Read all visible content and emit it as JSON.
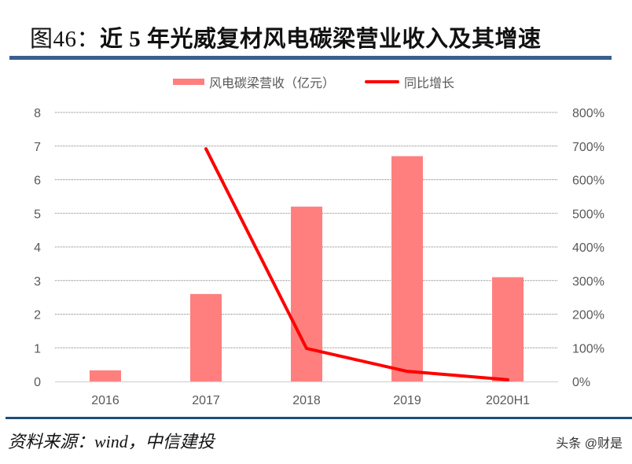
{
  "header": {
    "figure_label": "图46：",
    "title_text": "近 5 年光威复材风电碳梁营业收入及其增速"
  },
  "legend": {
    "bar_label": "风电碳梁营收（亿元）",
    "line_label": "同比增长"
  },
  "footer": {
    "source": "资料来源：wind，中信建投",
    "watermark": "头条 @财是"
  },
  "colors": {
    "bar": "#ff7f7f",
    "line": "#ff0000",
    "rule_top": "#3a5f8f",
    "rule_bottom": "#1f4e79",
    "axis_text": "#595959"
  },
  "chart_data": {
    "type": "bar",
    "title": "近5年光威复材风电碳梁营业收入及其增速",
    "categories": [
      "2016",
      "2017",
      "2018",
      "2019",
      "2020H1"
    ],
    "series": [
      {
        "name": "风电碳梁营收（亿元）",
        "type": "bar",
        "axis": "left",
        "values": [
          0.33,
          2.6,
          5.2,
          6.7,
          3.1
        ]
      },
      {
        "name": "同比增长",
        "type": "line",
        "axis": "right",
        "values": [
          null,
          692,
          98,
          30,
          5
        ],
        "unit": "%"
      }
    ],
    "xlabel": "",
    "ylabel_left": "",
    "ylabel_right": "",
    "ylim_left": [
      0,
      8
    ],
    "ylim_right": [
      0,
      800
    ],
    "left_ticks": [
      "0",
      "1",
      "2",
      "3",
      "4",
      "5",
      "6",
      "7",
      "8"
    ],
    "right_ticks": [
      "0%",
      "100%",
      "200%",
      "300%",
      "400%",
      "500%",
      "600%",
      "700%",
      "800%"
    ],
    "grid": true,
    "legend_position": "top"
  }
}
